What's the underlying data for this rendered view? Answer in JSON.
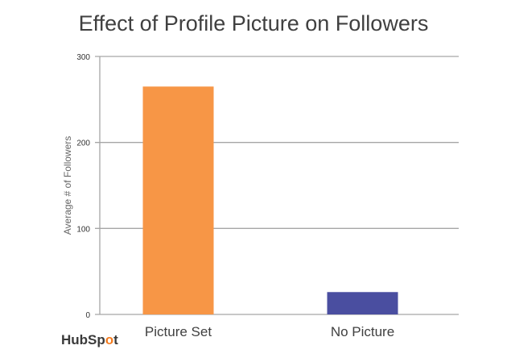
{
  "chart_data": {
    "type": "bar",
    "title": "Effect of Profile Picture on Followers",
    "xlabel": "",
    "ylabel": "Average # of Followers",
    "categories": [
      "Picture Set",
      "No Picture"
    ],
    "values": [
      265,
      26
    ],
    "colors": [
      "#f79646",
      "#4a4ea0"
    ],
    "ylim": [
      0,
      300
    ],
    "yticks": [
      0,
      100,
      200,
      300
    ],
    "grid": true,
    "legend": "none"
  },
  "logo": {
    "text": "HubSpot"
  }
}
